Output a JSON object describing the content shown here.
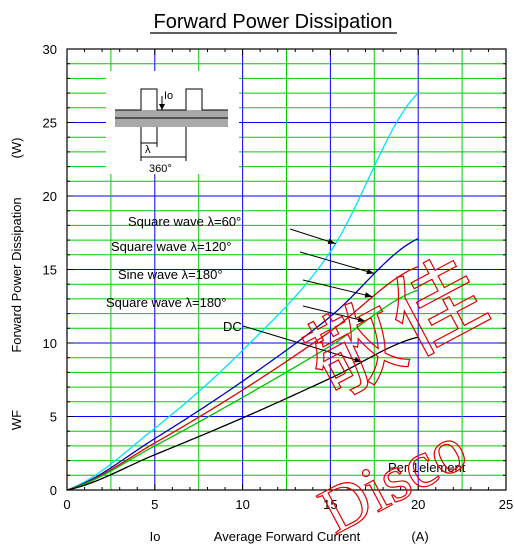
{
  "chart_data": {
    "type": "line",
    "title": "Forward Power Dissipation",
    "xlabel_symbol": "Io",
    "xlabel": "Average Forward Current",
    "xlabel_unit": "(A)",
    "ylabel_symbol": "WF",
    "ylabel": "Forward Power Dissipation",
    "ylabel_unit": "(W)",
    "xlim": [
      0,
      25
    ],
    "ylim": [
      0,
      30
    ],
    "x_ticks": [
      0,
      5,
      10,
      15,
      20,
      25
    ],
    "y_ticks": [
      0,
      5,
      10,
      15,
      20,
      25,
      30
    ],
    "grid": true,
    "x": [
      0,
      5,
      10,
      15,
      20
    ],
    "series": [
      {
        "name": "Square wave λ=60°",
        "color": "#00e0ff",
        "values": [
          0,
          4.2,
          9.5,
          16.2,
          27.0
        ]
      },
      {
        "name": "Square wave λ=120°",
        "color": "#0000c0",
        "values": [
          0,
          3.5,
          7.4,
          11.8,
          17.1
        ]
      },
      {
        "name": "Sine wave λ=180°",
        "color": "#e00000",
        "values": [
          0,
          3.2,
          6.8,
          10.8,
          15.2
        ]
      },
      {
        "name": "Square wave λ=180°",
        "color": "#00c000",
        "values": [
          0,
          3.0,
          6.3,
          9.8,
          13.6
        ]
      },
      {
        "name": "DC",
        "color": "#000000",
        "values": [
          0,
          2.4,
          4.9,
          7.6,
          10.4
        ]
      }
    ],
    "note": "Per 1element"
  },
  "inset": {
    "io_label": "Io",
    "lambda_label": "λ",
    "period_label": "360°"
  },
  "watermark": {
    "line1": "敬佳",
    "line2": "Disco"
  },
  "colors": {
    "grid_major": "#0000ff",
    "grid_minor": "#00cc00",
    "watermark": "#e00000"
  }
}
